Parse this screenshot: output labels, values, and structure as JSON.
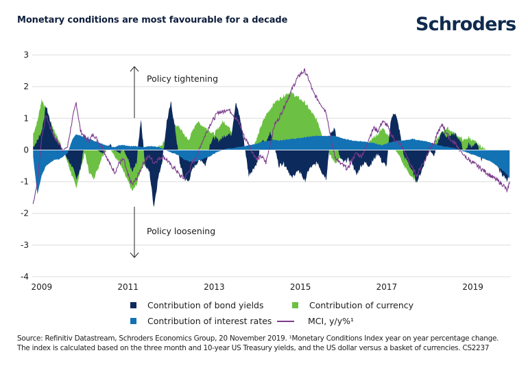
{
  "header": {
    "title": "Monetary conditions are most favourable for a decade",
    "brand": "Schroders"
  },
  "annotations": {
    "up": "Policy tightening",
    "down": "Policy loosening"
  },
  "legend": {
    "items": [
      {
        "label": "Contribution of bond yields",
        "color": "#0d2a5c",
        "kind": "square"
      },
      {
        "label": "Contribution of currency",
        "color": "#6cc043",
        "kind": "square"
      },
      {
        "label": "Contribution of interest rates",
        "color": "#1372b4",
        "kind": "square"
      },
      {
        "label": "MCI, y/y%¹",
        "color": "#7a3a8c",
        "kind": "line"
      }
    ]
  },
  "footer": {
    "source_line1": "Source: Refinitiv Datastream, Schroders Economics Group, 20 November 2019. ¹Monetary Conditions Index year on year percentage change.",
    "source_line2": "The index is calculated based on the three month and 10-year US Treasury yields, and the US dollar versus a basket of currencies. CS2237"
  },
  "chart_data": {
    "type": "area",
    "title": "Monetary conditions are most favourable for a decade",
    "xlabel": "",
    "ylabel": "",
    "xlim": [
      2008.78,
      2019.88
    ],
    "ylim": [
      -4,
      3
    ],
    "yticks": [
      3,
      2,
      1,
      0,
      -1,
      -2,
      -3,
      -4
    ],
    "xticks": [
      2009,
      2011,
      2013,
      2015,
      2017,
      2019
    ],
    "xtick_labels": [
      "2009",
      "2011",
      "2013",
      "2015",
      "2017",
      "2019"
    ],
    "grid": true,
    "legend_position": "bottom",
    "x": [
      2008.8,
      2008.9,
      2009.0,
      2009.1,
      2009.2,
      2009.3,
      2009.4,
      2009.5,
      2009.6,
      2009.7,
      2009.8,
      2009.9,
      2010.0,
      2010.1,
      2010.2,
      2010.3,
      2010.4,
      2010.5,
      2010.6,
      2010.7,
      2010.8,
      2010.9,
      2011.0,
      2011.1,
      2011.2,
      2011.3,
      2011.4,
      2011.5,
      2011.6,
      2011.7,
      2011.8,
      2011.9,
      2012.0,
      2012.1,
      2012.2,
      2012.3,
      2012.4,
      2012.5,
      2012.6,
      2012.7,
      2012.8,
      2012.9,
      2013.0,
      2013.1,
      2013.2,
      2013.3,
      2013.4,
      2013.5,
      2013.6,
      2013.7,
      2013.8,
      2013.9,
      2014.0,
      2014.1,
      2014.2,
      2014.3,
      2014.4,
      2014.5,
      2014.6,
      2014.7,
      2014.8,
      2014.9,
      2015.0,
      2015.1,
      2015.2,
      2015.3,
      2015.4,
      2015.5,
      2015.6,
      2015.7,
      2015.8,
      2015.9,
      2016.0,
      2016.1,
      2016.2,
      2016.3,
      2016.4,
      2016.5,
      2016.6,
      2016.7,
      2016.8,
      2016.9,
      2017.0,
      2017.1,
      2017.2,
      2017.3,
      2017.4,
      2017.5,
      2017.6,
      2017.7,
      2017.8,
      2017.9,
      2018.0,
      2018.1,
      2018.2,
      2018.3,
      2018.4,
      2018.5,
      2018.6,
      2018.7,
      2018.8,
      2018.9,
      2019.0,
      2019.1,
      2019.2,
      2019.3,
      2019.4,
      2019.5,
      2019.6,
      2019.7,
      2019.8,
      2019.85
    ],
    "series": [
      {
        "name": "Contribution of interest rates",
        "color": "#1372b4",
        "values": [
          -0.2,
          -1.4,
          -0.8,
          -0.5,
          -0.4,
          -0.3,
          -0.3,
          -0.2,
          -0.1,
          0.3,
          0.5,
          0.45,
          0.4,
          0.35,
          0.3,
          0.25,
          0.2,
          0.15,
          0.1,
          0.1,
          0.15,
          0.15,
          0.12,
          0.12,
          0.12,
          0.1,
          0.1,
          0.12,
          0.12,
          0.1,
          0.05,
          -0.02,
          -0.08,
          -0.12,
          -0.2,
          -0.3,
          -0.35,
          -0.38,
          -0.35,
          -0.3,
          -0.25,
          -0.2,
          -0.12,
          -0.05,
          0.0,
          0.05,
          0.06,
          0.08,
          0.1,
          0.12,
          0.15,
          0.18,
          0.2,
          0.25,
          0.28,
          0.3,
          0.32,
          0.3,
          0.32,
          0.34,
          0.35,
          0.36,
          0.38,
          0.4,
          0.42,
          0.43,
          0.45,
          0.45,
          0.45,
          0.45,
          0.45,
          0.4,
          0.35,
          0.33,
          0.3,
          0.28,
          0.28,
          0.26,
          0.24,
          0.22,
          0.18,
          0.15,
          0.2,
          0.25,
          0.28,
          0.3,
          0.3,
          0.32,
          0.35,
          0.32,
          0.3,
          0.28,
          0.25,
          0.2,
          0.15,
          0.12,
          0.1,
          0.08,
          0.05,
          0.0,
          -0.05,
          -0.1,
          -0.15,
          -0.2,
          -0.25,
          -0.3,
          -0.35,
          -0.45,
          -0.55,
          -0.65,
          -0.8,
          -0.9
        ]
      },
      {
        "name": "Contribution of bond yields",
        "color": "#0d2a5c",
        "values": [
          0.1,
          0.3,
          0.6,
          1.4,
          0.9,
          0.4,
          0.2,
          0.0,
          -0.3,
          -0.5,
          -0.9,
          -0.6,
          0.3,
          0.4,
          0.2,
          0.0,
          -0.1,
          0.1,
          0.15,
          0.0,
          -0.1,
          0.0,
          -0.3,
          -0.7,
          -0.4,
          1.0,
          -0.5,
          -0.7,
          -1.8,
          -0.9,
          -0.3,
          0.9,
          1.5,
          0.6,
          -0.4,
          -0.9,
          -1.0,
          -0.6,
          -0.4,
          -0.3,
          -0.5,
          0.2,
          0.4,
          0.3,
          0.4,
          0.5,
          0.5,
          1.5,
          1.0,
          0.2,
          -0.8,
          -0.6,
          -0.4,
          0.3,
          0.2,
          0.6,
          0.1,
          -0.5,
          -0.4,
          -0.6,
          -0.9,
          -0.7,
          -0.7,
          -1.0,
          -0.6,
          -0.5,
          -0.4,
          -0.7,
          -0.9,
          0.5,
          0.7,
          -0.2,
          -0.4,
          -0.3,
          -0.4,
          -0.8,
          -0.5,
          -0.4,
          -0.5,
          -0.3,
          -0.1,
          -0.4,
          -0.5,
          1.0,
          1.2,
          0.6,
          -0.2,
          -0.4,
          -0.7,
          -1.0,
          -0.7,
          -0.3,
          0.0,
          -0.2,
          0.3,
          0.6,
          0.4,
          0.5,
          0.5,
          0.3,
          -0.1,
          0.2,
          0.1,
          0.2,
          -0.3,
          -0.2,
          -0.3,
          -0.4,
          -0.6,
          -0.8,
          -1.0,
          -0.7
        ]
      },
      {
        "name": "Contribution of currency",
        "color": "#6cc043",
        "values": [
          0.5,
          0.9,
          1.6,
          1.3,
          0.9,
          0.6,
          0.3,
          0.0,
          -0.4,
          -0.8,
          -1.2,
          -0.6,
          -0.1,
          -0.7,
          -0.9,
          -0.6,
          -0.2,
          0.0,
          0.0,
          -0.2,
          -0.4,
          -0.7,
          -1.0,
          -1.3,
          -1.1,
          -0.6,
          -0.4,
          -0.2,
          0.0,
          0.1,
          0.2,
          0.4,
          0.6,
          0.8,
          0.7,
          0.5,
          0.3,
          0.6,
          0.9,
          0.8,
          0.7,
          0.6,
          0.5,
          0.7,
          0.9,
          0.8,
          0.6,
          0.4,
          0.2,
          0.0,
          -0.1,
          0.1,
          0.4,
          0.8,
          1.1,
          1.3,
          1.5,
          1.6,
          1.7,
          1.8,
          1.8,
          1.7,
          1.6,
          1.5,
          1.3,
          1.1,
          0.9,
          0.5,
          0.1,
          -0.2,
          -0.4,
          -0.3,
          -0.2,
          0.0,
          0.2,
          0.1,
          0.0,
          0.1,
          0.3,
          0.4,
          0.5,
          0.7,
          0.5,
          0.3,
          0.0,
          -0.2,
          -0.5,
          -0.7,
          -0.9,
          -1.0,
          -0.6,
          -0.3,
          0.0,
          0.2,
          0.4,
          0.6,
          0.7,
          0.6,
          0.5,
          0.4,
          0.3,
          0.4,
          0.3,
          0.2,
          0.1,
          0.0,
          0.0,
          0.0,
          0.0,
          0.0,
          0.0,
          0.0
        ]
      },
      {
        "name": "MCI, y/y%¹",
        "color": "#7a3a8c",
        "values": [
          -1.7,
          -1.0,
          0.4,
          1.1,
          0.7,
          0.4,
          0.2,
          0.0,
          0.1,
          0.9,
          1.5,
          0.6,
          0.4,
          0.3,
          0.5,
          0.3,
          0.1,
          -0.2,
          -0.5,
          -0.7,
          -0.4,
          -0.3,
          -0.8,
          -1.1,
          -0.9,
          -0.6,
          -0.3,
          -0.2,
          -0.4,
          -0.3,
          -0.2,
          -0.3,
          -0.5,
          -0.6,
          -0.8,
          -0.9,
          -0.7,
          -0.4,
          -0.2,
          0.2,
          0.5,
          0.8,
          1.0,
          1.2,
          1.2,
          1.3,
          1.2,
          1.0,
          0.8,
          0.4,
          0.2,
          -0.1,
          -0.3,
          -0.2,
          -0.4,
          0.2,
          0.8,
          1.0,
          1.3,
          1.6,
          1.9,
          2.2,
          2.4,
          2.5,
          2.2,
          1.8,
          1.6,
          1.4,
          1.2,
          0.4,
          -0.2,
          -0.4,
          -0.5,
          -0.6,
          -0.3,
          -0.1,
          -0.2,
          0.0,
          0.4,
          0.7,
          0.6,
          0.9,
          0.8,
          0.5,
          0.3,
          0.2,
          0.0,
          -0.3,
          -0.6,
          -0.8,
          -0.5,
          -0.3,
          0.1,
          0.2,
          0.6,
          0.8,
          0.5,
          0.3,
          0.2,
          0.0,
          -0.2,
          -0.3,
          -0.4,
          -0.5,
          -0.6,
          -0.7,
          -0.8,
          -0.9,
          -1.0,
          -1.1,
          -1.3,
          -1.0
        ]
      }
    ]
  }
}
